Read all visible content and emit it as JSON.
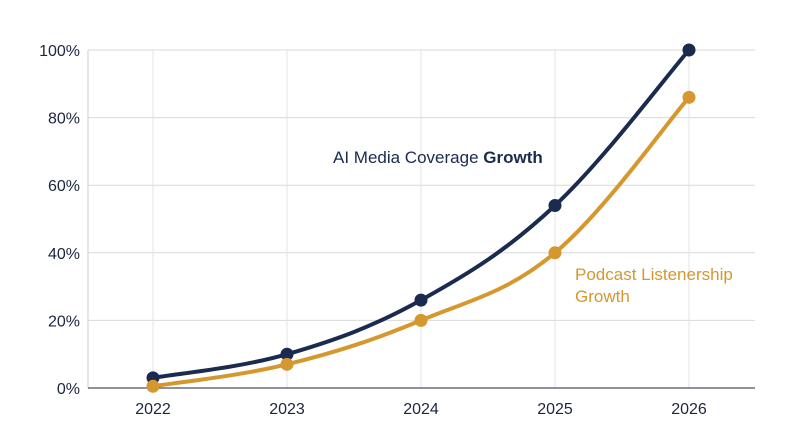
{
  "chart_data": {
    "type": "line",
    "title": "",
    "xlabel": "",
    "ylabel": "",
    "x": [
      "2022",
      "2023",
      "2024",
      "2025",
      "2026"
    ],
    "ylim": [
      0,
      100
    ],
    "yticks": [
      0,
      20,
      40,
      60,
      80,
      100
    ],
    "ytick_labels": [
      "0%",
      "20%",
      "40%",
      "60%",
      "80%",
      "100%"
    ],
    "grid": true,
    "legend": "none",
    "series": [
      {
        "name": "AI Media Coverage Growth",
        "label_regular": "AI Media Coverage ",
        "label_bold": "Growth",
        "color": "#1a2b4e",
        "values": [
          3,
          10,
          26,
          54,
          100
        ]
      },
      {
        "name": "Podcast Listenership Growth",
        "label_line1": "Podcast Listenership",
        "label_line2": "Growth",
        "color": "#d4982e",
        "values": [
          0.5,
          7,
          20,
          40,
          86
        ]
      }
    ]
  }
}
